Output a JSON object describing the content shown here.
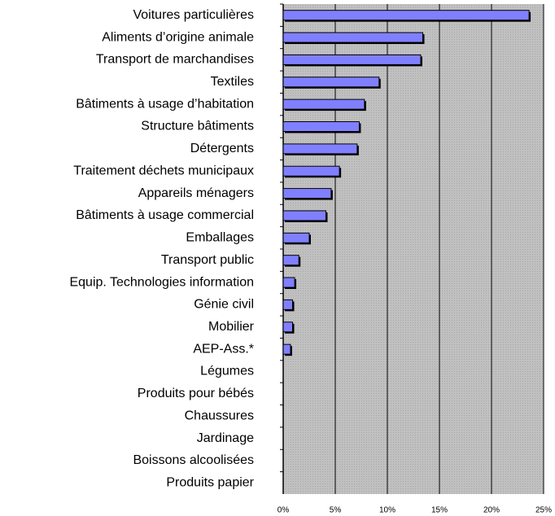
{
  "chart_data": {
    "type": "hbar",
    "categories": [
      "Voitures particulières",
      "Aliments d’origine animale",
      "Transport de marchandises",
      "Textiles",
      "Bâtiments à usage d’habitation",
      "Structure bâtiments",
      "Détergents",
      "Traitement déchets municipaux",
      "Appareils ménagers",
      "Bâtiments à usage commercial",
      "Emballages",
      "Transport public",
      "Equip. Technologies information",
      "Génie civil",
      "Mobilier",
      "AEP-Ass.*",
      "Légumes",
      "Produits pour bébés",
      "Chaussures",
      "Jardinage",
      "Boissons alcoolisées",
      "Produits papier"
    ],
    "values": [
      23.6,
      13.4,
      13.2,
      9.2,
      7.8,
      7.3,
      7.1,
      5.4,
      4.6,
      4.1,
      2.5,
      1.5,
      1.1,
      0.9,
      0.9,
      0.7,
      0,
      0,
      0,
      0,
      0,
      0
    ],
    "color": "#8080ff",
    "xlim": [
      0,
      25
    ],
    "xticks": [
      {
        "value": 0,
        "label": "0%"
      },
      {
        "value": 5,
        "label": "5%"
      },
      {
        "value": 10,
        "label": "10%"
      },
      {
        "value": 15,
        "label": "15%"
      },
      {
        "value": 20,
        "label": "20%"
      },
      {
        "value": 25,
        "label": "25%"
      }
    ],
    "grid": true
  }
}
